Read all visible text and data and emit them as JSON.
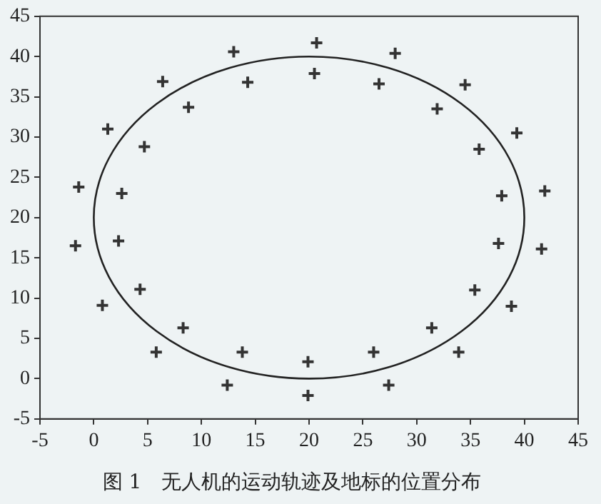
{
  "chart_data": {
    "type": "scatter",
    "title": "图 1　无人机的运动轨迹及地标的位置分布",
    "xlim": [
      -5,
      45
    ],
    "xticks": [
      -5,
      0,
      5,
      10,
      15,
      20,
      25,
      30,
      35,
      40,
      45
    ],
    "ylim": [
      -5,
      45
    ],
    "yticks": [
      -5,
      0,
      5,
      10,
      15,
      20,
      25,
      30,
      35,
      40,
      45
    ],
    "grid": false,
    "legend": false,
    "marker": "cross",
    "series": [
      {
        "color": "#333333",
        "x": [
          -1.4,
          -1.7,
          1.3,
          2.6,
          2.3,
          4.7,
          6.4,
          8.8,
          13.0,
          14.3,
          20.7,
          20.5,
          28.0,
          26.5,
          34.5,
          31.9,
          39.3,
          35.8,
          37.9,
          41.9,
          37.6,
          41.6,
          0.8,
          4.3,
          5.8,
          8.3,
          12.4,
          13.8,
          19.9,
          19.9,
          26.0,
          27.4,
          31.4,
          33.9,
          35.4,
          38.8
        ],
        "values": [
          23.8,
          16.5,
          31.0,
          23.0,
          17.1,
          28.8,
          36.9,
          33.7,
          40.6,
          36.8,
          41.7,
          37.9,
          40.4,
          36.6,
          36.5,
          33.5,
          30.5,
          28.5,
          22.7,
          23.3,
          16.8,
          16.1,
          9.1,
          11.1,
          3.3,
          6.3,
          -0.8,
          3.3,
          2.1,
          -2.1,
          3.3,
          -0.8,
          6.3,
          3.3,
          11.0,
          9.0
        ]
      }
    ]
  }
}
